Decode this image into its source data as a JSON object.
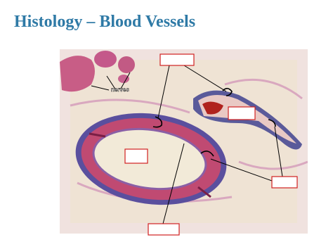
{
  "header": {
    "title": "Histology – Blood Vessels"
  },
  "image": {
    "annotation": "nerves"
  }
}
